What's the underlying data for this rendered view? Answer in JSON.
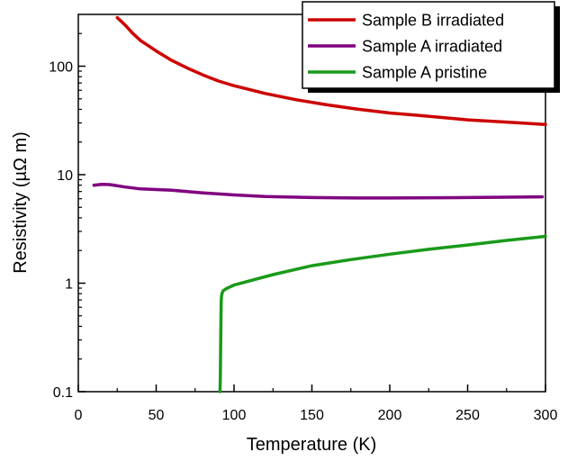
{
  "chart_data": {
    "type": "line",
    "title": "",
    "xlabel": "Temperature  (K)",
    "ylabel": "Resistivity (µΩ m)",
    "xlim": [
      0,
      300
    ],
    "ylim": [
      0.1,
      300
    ],
    "yscale": "log",
    "grid": false,
    "legend_position": "top-right",
    "xticks": [
      0,
      50,
      100,
      150,
      200,
      250,
      300
    ],
    "xtick_labels": [
      "0",
      "50",
      "100",
      "150",
      "200",
      "250",
      "300"
    ],
    "yticks": [
      0.1,
      1,
      10,
      100
    ],
    "ytick_labels": [
      "0.1",
      "1",
      "10",
      "100"
    ],
    "series": [
      {
        "name": "Sample B irradiated",
        "color": "#cc0000",
        "x": [
          25,
          30,
          35,
          40,
          50,
          60,
          70,
          80,
          90,
          100,
          120,
          140,
          160,
          180,
          200,
          220,
          250,
          275,
          300
        ],
        "y": [
          280,
          240,
          200,
          172,
          138,
          113,
          96,
          83,
          73,
          66,
          56,
          49,
          44,
          40,
          37,
          35,
          32,
          30.5,
          29
        ]
      },
      {
        "name": "Sample A irradiated",
        "color": "#800080",
        "x": [
          10,
          15,
          20,
          25,
          30,
          40,
          50,
          60,
          70,
          80,
          100,
          120,
          150,
          180,
          200,
          250,
          275,
          298
        ],
        "y": [
          8.0,
          8.15,
          8.1,
          7.9,
          7.7,
          7.4,
          7.3,
          7.2,
          7.0,
          6.8,
          6.5,
          6.3,
          6.15,
          6.1,
          6.1,
          6.15,
          6.2,
          6.25
        ]
      },
      {
        "name": "Sample A pristine",
        "color": "#1a9a1a",
        "x": [
          91,
          91.2,
          91.4,
          91.6,
          91.8,
          92,
          92.5,
          93,
          95,
          100,
          110,
          125,
          150,
          175,
          200,
          225,
          250,
          275,
          300
        ],
        "y": [
          0.1,
          0.14,
          0.25,
          0.5,
          0.7,
          0.77,
          0.82,
          0.85,
          0.89,
          0.96,
          1.05,
          1.2,
          1.45,
          1.65,
          1.85,
          2.05,
          2.25,
          2.48,
          2.7
        ]
      }
    ]
  }
}
